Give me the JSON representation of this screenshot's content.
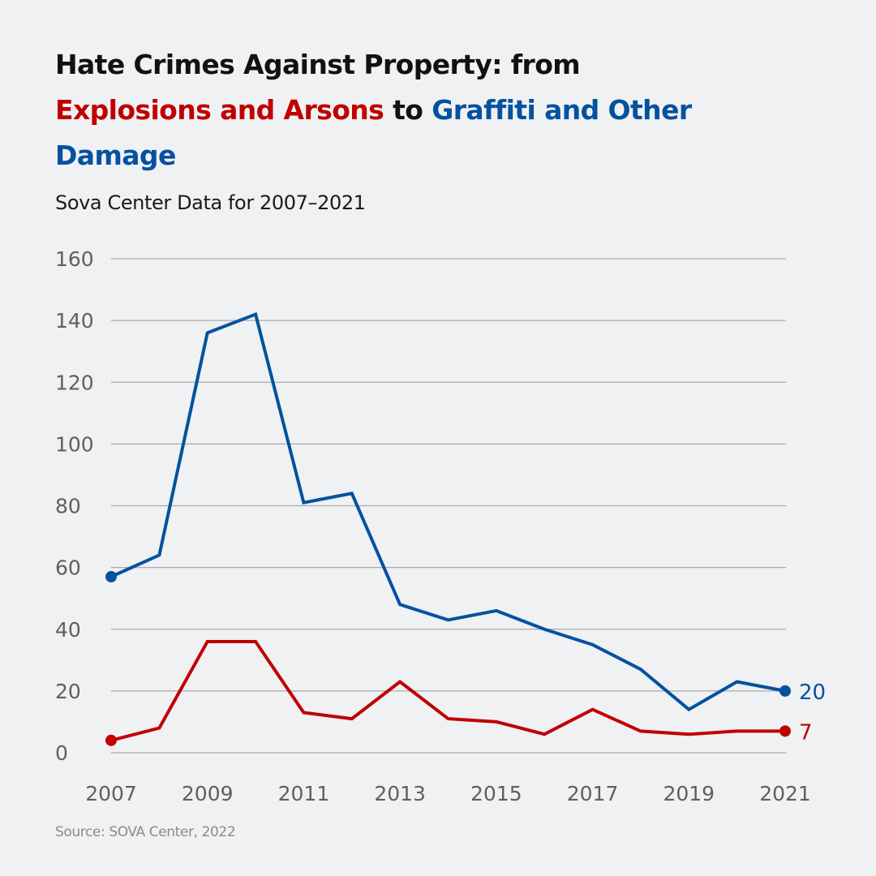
{
  "title": {
    "part1": "Hate Crimes Against Property: from ",
    "part2_red": "Explosions and Arsons",
    "part3": " to ",
    "part4_blue": "Graffiti and Other Damage"
  },
  "subtitle": "Sova Center Data for 2007–2021",
  "source": "Source: SOVA Center, 2022",
  "colors": {
    "graffiti": "#0451a0",
    "arson": "#c00000",
    "grid": "#a9a9a9",
    "background": "#f0f1f3"
  },
  "chart_data": {
    "type": "line",
    "title": "Hate Crimes Against Property: from Explosions and Arsons to Graffiti and Other Damage",
    "subtitle": "Sova Center Data for 2007–2021",
    "xlabel": "",
    "ylabel": "",
    "x": [
      2007,
      2008,
      2009,
      2010,
      2011,
      2012,
      2013,
      2014,
      2015,
      2016,
      2017,
      2018,
      2019,
      2020,
      2021
    ],
    "x_tick_labels": [
      "2007",
      "2009",
      "2011",
      "2013",
      "2015",
      "2017",
      "2019",
      "2021"
    ],
    "x_ticks": [
      2007,
      2009,
      2011,
      2013,
      2015,
      2017,
      2019,
      2021
    ],
    "y_ticks": [
      0,
      20,
      40,
      60,
      80,
      100,
      120,
      140,
      160
    ],
    "y_tick_labels": [
      "0",
      "20",
      "40",
      "60",
      "80",
      "100",
      "120",
      "140",
      "160"
    ],
    "ylim": [
      0,
      160
    ],
    "xlim": [
      2007,
      2021
    ],
    "grid": "horizontal",
    "legend": "none (series identified by colored title words and end labels)",
    "series": [
      {
        "name": "Graffiti and Other Damage",
        "color": "#0451a0",
        "values": [
          57,
          64,
          136,
          142,
          81,
          84,
          48,
          43,
          46,
          40,
          35,
          27,
          14,
          23,
          20
        ],
        "end_label": "20"
      },
      {
        "name": "Explosions and Arsons",
        "color": "#c00000",
        "values": [
          4,
          8,
          36,
          36,
          13,
          11,
          23,
          11,
          10,
          6,
          14,
          7,
          6,
          7,
          7
        ],
        "end_label": "7"
      }
    ]
  }
}
